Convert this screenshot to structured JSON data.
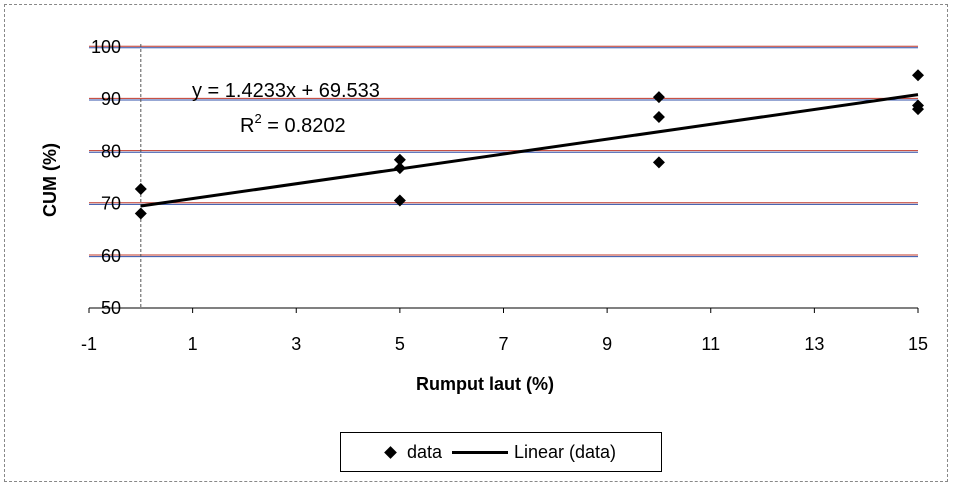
{
  "chart_data": {
    "type": "scatter",
    "title": "",
    "xlabel": "Rumput laut (%)",
    "ylabel": "CUM (%)",
    "xlim": [
      -1,
      15
    ],
    "ylim": [
      50,
      100
    ],
    "xticks": [
      -1,
      1,
      3,
      5,
      7,
      9,
      11,
      13,
      15
    ],
    "yticks": [
      50,
      60,
      70,
      80,
      90,
      100
    ],
    "grid": "horizontal",
    "series": [
      {
        "name": "data",
        "marker": "diamond",
        "color": "#000000",
        "points": [
          {
            "x": 0,
            "y": 72.8
          },
          {
            "x": 0,
            "y": 68.1
          },
          {
            "x": 5,
            "y": 78.4
          },
          {
            "x": 5,
            "y": 76.8
          },
          {
            "x": 5,
            "y": 70.6
          },
          {
            "x": 10,
            "y": 90.4
          },
          {
            "x": 10,
            "y": 86.6
          },
          {
            "x": 10,
            "y": 77.9
          },
          {
            "x": 15,
            "y": 94.6
          },
          {
            "x": 15,
            "y": 88.8
          },
          {
            "x": 15,
            "y": 88.1
          }
        ]
      }
    ],
    "trendline": {
      "name": "Linear (data)",
      "slope": 1.4233,
      "intercept": 69.533,
      "x_range": [
        0,
        15
      ],
      "color": "#000000"
    },
    "annotations": {
      "equation": "y = 1.4233x + 69.533",
      "r2_prefix": "R",
      "r2_sup": "2",
      "r2_value": " = 0.8202"
    },
    "legend": {
      "position": "bottom",
      "entries": [
        "data",
        "Linear (data)"
      ]
    },
    "colors": {
      "grid_red": "#c0392b",
      "grid_blue": "#2f4fa8",
      "axis": "#000000",
      "vline": "#555555"
    }
  }
}
